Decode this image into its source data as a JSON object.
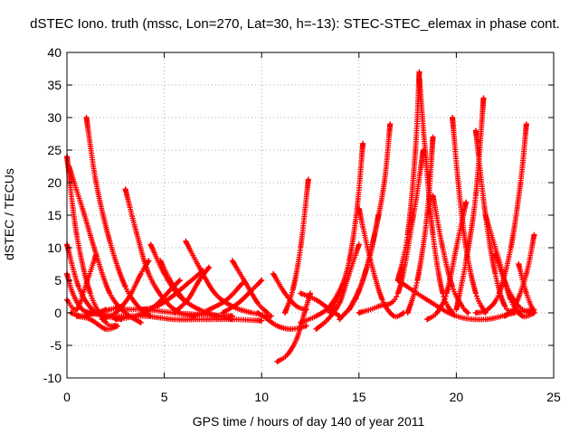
{
  "chart_data": {
    "type": "scatter",
    "title": "dSTEC Iono. truth (mssc, Lon=270, Lat=30, h=-13): STEC-STEC_elemax in phase cont.",
    "xlabel": "GPS time / hours of day 140 of year 2011",
    "ylabel": "dSTEC  / TECUs",
    "xlim": [
      0,
      25
    ],
    "ylim": [
      -10,
      40
    ],
    "xticks": [
      0,
      5,
      10,
      15,
      20,
      25
    ],
    "yticks": [
      -10,
      -5,
      0,
      5,
      10,
      15,
      20,
      25,
      30,
      35,
      40
    ],
    "grid": true,
    "legend": "none",
    "marker": "plus",
    "color": "#ff0000",
    "series": [
      {
        "x": [
          0.0,
          0.5,
          1.2,
          2.0,
          2.5
        ],
        "y": [
          24.0,
          12.0,
          3.0,
          -1.5,
          -2.0
        ]
      },
      {
        "x": [
          0.1,
          0.8,
          1.5,
          2.2,
          3.0,
          3.8
        ],
        "y": [
          22.5,
          16.0,
          9.0,
          3.0,
          0.0,
          -1.5
        ]
      },
      {
        "x": [
          1.0,
          1.5,
          2.2,
          3.0,
          3.8,
          4.3
        ],
        "y": [
          30.0,
          20.0,
          11.0,
          4.0,
          0.5,
          -0.5
        ]
      },
      {
        "x": [
          0.0,
          0.6,
          1.3,
          2.0,
          2.8
        ],
        "y": [
          10.5,
          4.0,
          0.5,
          -0.5,
          -1.0
        ]
      },
      {
        "x": [
          0.0,
          0.3,
          0.8,
          1.5,
          2.0
        ],
        "y": [
          6.0,
          3.0,
          0.5,
          0.0,
          0.5
        ]
      },
      {
        "x": [
          0.0,
          0.5,
          1.0,
          1.5
        ],
        "y": [
          2.0,
          0.5,
          4.5,
          9.0
        ]
      },
      {
        "x": [
          0.2,
          0.8,
          1.5,
          2.2,
          2.8
        ],
        "y": [
          0.0,
          -0.5,
          0.0,
          0.5,
          1.0
        ]
      },
      {
        "x": [
          0.5,
          1.2,
          2.0,
          2.6
        ],
        "y": [
          -0.5,
          -1.0,
          -2.5,
          -2.0
        ]
      },
      {
        "x": [
          3.0,
          3.6,
          4.2,
          5.0,
          5.8,
          6.5
        ],
        "y": [
          19.0,
          12.0,
          6.0,
          2.0,
          0.0,
          -0.5
        ]
      },
      {
        "x": [
          1.8,
          2.5,
          3.2,
          3.8,
          4.2
        ],
        "y": [
          -1.0,
          0.0,
          2.5,
          6.0,
          8.0
        ]
      },
      {
        "x": [
          4.3,
          5.0,
          5.8,
          6.8,
          7.8,
          8.5
        ],
        "y": [
          10.5,
          6.0,
          2.5,
          0.5,
          -0.5,
          -1.0
        ]
      },
      {
        "x": [
          4.8,
          5.4,
          6.0
        ],
        "y": [
          8.0,
          4.5,
          2.0
        ]
      },
      {
        "x": [
          6.1,
          6.8,
          7.6,
          8.5,
          9.5,
          10.5
        ],
        "y": [
          11.0,
          7.0,
          3.0,
          1.0,
          0.0,
          -0.5
        ]
      },
      {
        "x": [
          2.5,
          3.5,
          4.5,
          5.3,
          5.8
        ],
        "y": [
          -1.0,
          -0.5,
          1.0,
          3.5,
          5.0
        ]
      },
      {
        "x": [
          5.5,
          6.2,
          6.8,
          7.3
        ],
        "y": [
          0.0,
          2.0,
          5.0,
          7.0
        ]
      },
      {
        "x": [
          3.8,
          4.6,
          5.4,
          6.2,
          7.0
        ],
        "y": [
          0.5,
          1.0,
          2.5,
          4.5,
          6.5
        ]
      },
      {
        "x": [
          6.5,
          7.3,
          8.2,
          9.0
        ],
        "y": [
          -0.5,
          0.5,
          2.0,
          4.5
        ]
      },
      {
        "x": [
          8.5,
          9.2,
          9.8,
          10.3
        ],
        "y": [
          8.0,
          4.5,
          1.5,
          0.0
        ]
      },
      {
        "x": [
          8.0,
          8.8,
          9.5,
          10.0
        ],
        "y": [
          0.0,
          1.5,
          3.5,
          5.0
        ]
      },
      {
        "x": [
          1.0,
          2.5,
          4.0,
          5.5,
          7.0,
          8.5,
          10.0
        ],
        "y": [
          0.0,
          -0.5,
          -0.5,
          -1.0,
          -1.0,
          -1.0,
          -1.2
        ]
      },
      {
        "x": [
          2.8,
          4.0,
          5.5,
          7.0,
          8.5
        ],
        "y": [
          0.5,
          0.5,
          0.0,
          -0.3,
          -0.5
        ]
      },
      {
        "x": [
          9.8,
          10.3,
          10.8,
          11.5,
          12.3
        ],
        "y": [
          0.0,
          -1.0,
          -2.0,
          -2.5,
          -2.0
        ]
      },
      {
        "x": [
          10.6,
          11.2,
          11.8,
          12.3
        ],
        "y": [
          6.0,
          3.0,
          1.0,
          0.5
        ]
      },
      {
        "x": [
          10.8,
          11.3,
          11.8,
          12.2,
          12.5
        ],
        "y": [
          -7.5,
          -6.5,
          -4.0,
          0.0,
          3.0
        ]
      },
      {
        "x": [
          11.2,
          11.6,
          12.0,
          12.4
        ],
        "y": [
          0.0,
          3.5,
          10.0,
          20.5
        ]
      },
      {
        "x": [
          12.0,
          12.8,
          13.5,
          14.2
        ],
        "y": [
          -1.5,
          -0.5,
          1.0,
          4.5
        ]
      },
      {
        "x": [
          12.8,
          13.4,
          14.0,
          14.5,
          15.0
        ],
        "y": [
          -2.5,
          -1.0,
          1.5,
          6.0,
          10.5
        ]
      },
      {
        "x": [
          12.0,
          12.8,
          13.5,
          14.0
        ],
        "y": [
          3.0,
          2.0,
          0.5,
          -0.5
        ]
      },
      {
        "x": [
          13.5,
          14.0,
          14.5,
          14.9,
          15.2
        ],
        "y": [
          0.0,
          3.0,
          8.0,
          16.0,
          26.0
        ]
      },
      {
        "x": [
          14.0,
          14.8,
          15.5,
          16.0
        ],
        "y": [
          -1.0,
          2.0,
          8.0,
          15.0
        ]
      },
      {
        "x": [
          15.0,
          15.6,
          16.2,
          16.8,
          17.3
        ],
        "y": [
          16.0,
          8.0,
          2.0,
          -0.5,
          0.0
        ]
      },
      {
        "x": [
          14.5,
          15.2,
          15.8,
          16.3,
          16.6
        ],
        "y": [
          0.5,
          5.0,
          12.0,
          20.0,
          29.0
        ]
      },
      {
        "x": [
          15.0,
          16.0,
          17.0,
          17.8,
          18.3
        ],
        "y": [
          0.0,
          1.0,
          3.0,
          15.0,
          25.0
        ]
      },
      {
        "x": [
          17.0,
          17.5,
          17.9,
          18.1
        ],
        "y": [
          5.0,
          12.0,
          25.0,
          37.0
        ]
      },
      {
        "x": [
          18.1,
          18.4,
          18.8,
          19.3,
          19.8
        ],
        "y": [
          36.0,
          25.0,
          12.0,
          3.0,
          0.0
        ]
      },
      {
        "x": [
          17.5,
          18.0,
          18.5,
          18.8
        ],
        "y": [
          0.0,
          5.0,
          15.0,
          27.0
        ]
      },
      {
        "x": [
          18.5,
          19.0,
          19.5,
          20.0,
          20.5
        ],
        "y": [
          -1.0,
          0.0,
          3.0,
          10.0,
          17.0
        ]
      },
      {
        "x": [
          18.8,
          19.3,
          19.8,
          20.3,
          20.6
        ],
        "y": [
          18.0,
          10.0,
          4.0,
          1.0,
          0.0
        ]
      },
      {
        "x": [
          19.8,
          20.1,
          20.5,
          21.0,
          21.5
        ],
        "y": [
          30.0,
          20.0,
          10.0,
          3.0,
          0.0
        ]
      },
      {
        "x": [
          20.0,
          20.5,
          21.0,
          21.4
        ],
        "y": [
          0.5,
          8.0,
          18.0,
          33.0
        ]
      },
      {
        "x": [
          21.0,
          21.5,
          22.0,
          22.5,
          23.0
        ],
        "y": [
          28.0,
          15.0,
          6.0,
          1.0,
          0.0
        ]
      },
      {
        "x": [
          21.0,
          21.6,
          22.2,
          22.8,
          23.3,
          23.6
        ],
        "y": [
          0.0,
          0.5,
          3.0,
          10.0,
          20.0,
          29.0
        ]
      },
      {
        "x": [
          21.5,
          22.2,
          22.8,
          23.4,
          24.0
        ],
        "y": [
          15.0,
          8.0,
          2.0,
          -0.5,
          0.0
        ]
      },
      {
        "x": [
          22.0,
          22.6,
          23.2,
          23.8
        ],
        "y": [
          9.0,
          4.0,
          1.0,
          0.0
        ]
      },
      {
        "x": [
          23.2,
          23.6,
          24.0
        ],
        "y": [
          7.5,
          3.0,
          0.0
        ]
      },
      {
        "x": [
          22.5,
          23.0,
          23.6,
          24.0
        ],
        "y": [
          -0.5,
          1.0,
          6.0,
          12.0
        ]
      },
      {
        "x": [
          17.0,
          18.5,
          20.0,
          21.5,
          23.0,
          24.0
        ],
        "y": [
          5.0,
          2.0,
          -0.5,
          -1.0,
          0.0,
          0.5
        ]
      }
    ]
  }
}
